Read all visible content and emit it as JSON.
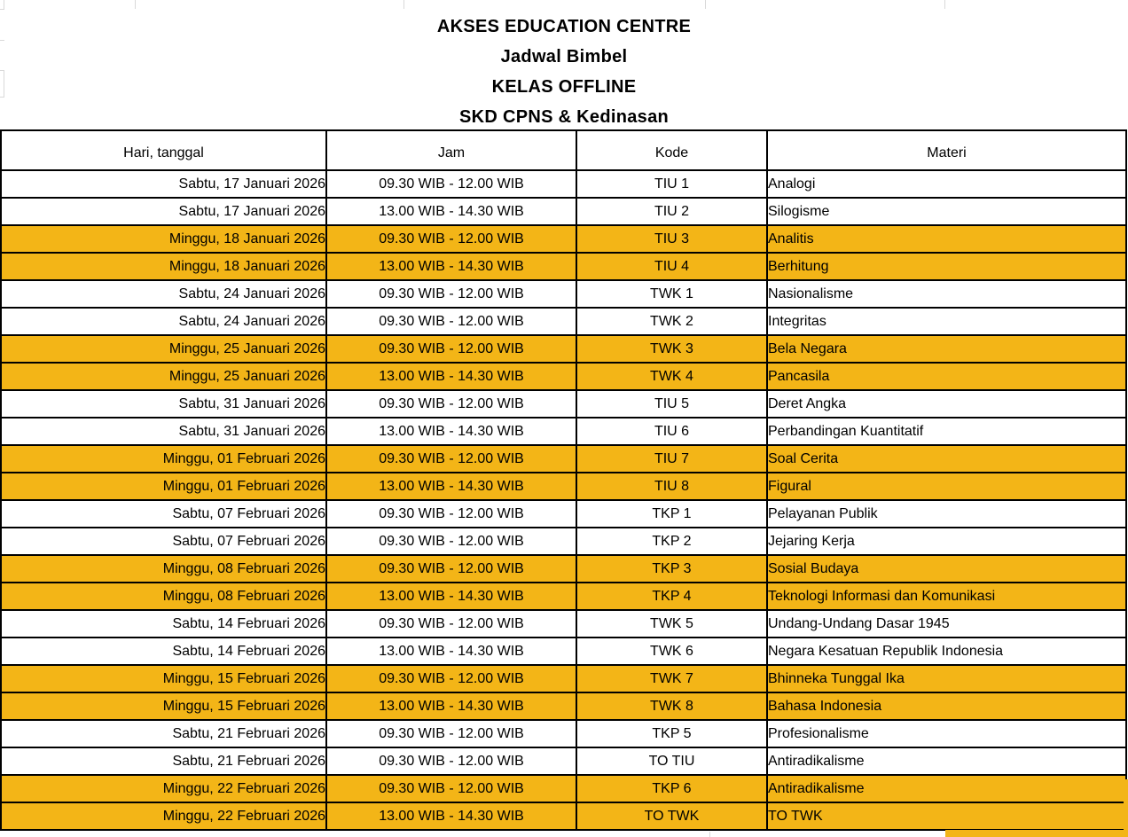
{
  "header": {
    "title_lines": [
      "AKSES EDUCATION CENTRE",
      "Jadwal Bimbel",
      "KELAS OFFLINE",
      "SKD CPNS & Kedinasan"
    ]
  },
  "table": {
    "column_headers": [
      "Hari, tanggal",
      "Jam",
      "Kode",
      "Materi"
    ],
    "rows": [
      {
        "hari_tanggal": "Sabtu, 17 Januari 2026",
        "jam": "09.30 WIB - 12.00 WIB",
        "kode": "TIU 1",
        "materi": "Analogi",
        "highlighted": false,
        "kode_large": false,
        "materi_large": false
      },
      {
        "hari_tanggal": "Sabtu, 17 Januari 2026",
        "jam": "13.00 WIB - 14.30 WIB",
        "kode": "TIU 2",
        "materi": "Silogisme",
        "highlighted": false,
        "kode_large": false,
        "materi_large": false
      },
      {
        "hari_tanggal": "Minggu, 18 Januari 2026",
        "jam": "09.30 WIB - 12.00 WIB",
        "kode": "TIU 3",
        "materi": "Analitis",
        "highlighted": true,
        "kode_large": false,
        "materi_large": false
      },
      {
        "hari_tanggal": "Minggu, 18 Januari 2026",
        "jam": "13.00 WIB - 14.30 WIB",
        "kode": "TIU 4",
        "materi": "Berhitung",
        "highlighted": true,
        "kode_large": false,
        "materi_large": false
      },
      {
        "hari_tanggal": "Sabtu, 24 Januari 2026",
        "jam": "09.30 WIB - 12.00 WIB",
        "kode": "TWK 1",
        "materi": "Nasionalisme",
        "highlighted": false,
        "kode_large": false,
        "materi_large": false
      },
      {
        "hari_tanggal": "Sabtu, 24 Januari 2026",
        "jam": "09.30 WIB - 12.00 WIB",
        "kode": "TWK 2",
        "materi": "Integritas",
        "highlighted": false,
        "kode_large": false,
        "materi_large": false
      },
      {
        "hari_tanggal": "Minggu, 25 Januari 2026",
        "jam": "09.30 WIB - 12.00 WIB",
        "kode": "TWK 3",
        "materi": "Bela Negara",
        "highlighted": true,
        "kode_large": false,
        "materi_large": false
      },
      {
        "hari_tanggal": "Minggu, 25 Januari 2026",
        "jam": "13.00 WIB - 14.30 WIB",
        "kode": "TWK 4",
        "materi": "Pancasila",
        "highlighted": true,
        "kode_large": false,
        "materi_large": false
      },
      {
        "hari_tanggal": "Sabtu, 31 Januari 2026",
        "jam": "09.30 WIB - 12.00 WIB",
        "kode": "TIU 5",
        "materi": "Deret Angka",
        "highlighted": false,
        "kode_large": false,
        "materi_large": false
      },
      {
        "hari_tanggal": "Sabtu, 31 Januari 2026",
        "jam": "13.00 WIB - 14.30 WIB",
        "kode": "TIU 6",
        "materi": "Perbandingan Kuantitatif",
        "highlighted": false,
        "kode_large": false,
        "materi_large": false
      },
      {
        "hari_tanggal": "Minggu, 01 Februari 2026",
        "jam": "09.30 WIB - 12.00 WIB",
        "kode": "TIU 7",
        "materi": "Soal Cerita",
        "highlighted": true,
        "kode_large": false,
        "materi_large": false
      },
      {
        "hari_tanggal": "Minggu, 01 Februari 2026",
        "jam": "13.00 WIB - 14.30 WIB",
        "kode": "TIU 8",
        "materi": "Figural",
        "highlighted": true,
        "kode_large": false,
        "materi_large": false
      },
      {
        "hari_tanggal": "Sabtu, 07 Februari 2026",
        "jam": "09.30 WIB - 12.00 WIB",
        "kode": "TKP 1",
        "materi": "Pelayanan Publik",
        "highlighted": false,
        "kode_large": true,
        "materi_large": false
      },
      {
        "hari_tanggal": "Sabtu, 07 Februari 2026",
        "jam": "09.30 WIB - 12.00 WIB",
        "kode": "TKP 2",
        "materi": "Jejaring Kerja",
        "highlighted": false,
        "kode_large": true,
        "materi_large": false
      },
      {
        "hari_tanggal": "Minggu, 08 Februari 2026",
        "jam": "09.30 WIB - 12.00 WIB",
        "kode": "TKP 3",
        "materi": "Sosial Budaya",
        "highlighted": true,
        "kode_large": true,
        "materi_large": false
      },
      {
        "hari_tanggal": "Minggu, 08 Februari 2026",
        "jam": "13.00 WIB - 14.30 WIB",
        "kode": "TKP 4",
        "materi": "Teknologi Informasi dan Komunikasi",
        "highlighted": true,
        "kode_large": true,
        "materi_large": false
      },
      {
        "hari_tanggal": "Sabtu, 14 Februari 2026",
        "jam": "09.30 WIB - 12.00 WIB",
        "kode": "TWK 5",
        "materi": "Undang-Undang Dasar 1945",
        "highlighted": false,
        "kode_large": false,
        "materi_large": false
      },
      {
        "hari_tanggal": "Sabtu, 14 Februari 2026",
        "jam": "13.00 WIB - 14.30 WIB",
        "kode": "TWK 6",
        "materi": "Negara Kesatuan Republik Indonesia",
        "highlighted": false,
        "kode_large": false,
        "materi_large": false
      },
      {
        "hari_tanggal": "Minggu, 15 Februari 2026",
        "jam": "09.30 WIB - 12.00 WIB",
        "kode": "TWK 7",
        "materi": "Bhinneka Tunggal Ika",
        "highlighted": true,
        "kode_large": false,
        "materi_large": false
      },
      {
        "hari_tanggal": "Minggu, 15 Februari 2026",
        "jam": "13.00 WIB - 14.30 WIB",
        "kode": "TWK 8",
        "materi": "Bahasa Indonesia",
        "highlighted": true,
        "kode_large": false,
        "materi_large": false
      },
      {
        "hari_tanggal": "Sabtu, 21 Februari 2026",
        "jam": "09.30 WIB - 12.00 WIB",
        "kode": "TKP 5",
        "materi": "Profesionalisme",
        "highlighted": false,
        "kode_large": false,
        "materi_large": false
      },
      {
        "hari_tanggal": "Sabtu, 21 Februari 2026",
        "jam": "09.30 WIB - 12.00 WIB",
        "kode": "TO TIU",
        "materi": "Antiradikalisme",
        "highlighted": false,
        "kode_large": true,
        "materi_large": false
      },
      {
        "hari_tanggal": "Minggu, 22 Februari 2026",
        "jam": "09.30 WIB - 12.00 WIB",
        "kode": "TKP 6",
        "materi": "Antiradikalisme",
        "highlighted": true,
        "kode_large": true,
        "materi_large": true
      },
      {
        "hari_tanggal": "Minggu, 22 Februari 2026",
        "jam": "13.00 WIB - 14.30 WIB",
        "kode": "TO TWK",
        "materi": "TO TWK",
        "highlighted": true,
        "kode_large": true,
        "materi_large": true
      }
    ]
  },
  "colors": {
    "highlight_row": "#F3B517",
    "grid_border": "#000000",
    "text": "#000000",
    "page_background": "#FFFFFF"
  }
}
